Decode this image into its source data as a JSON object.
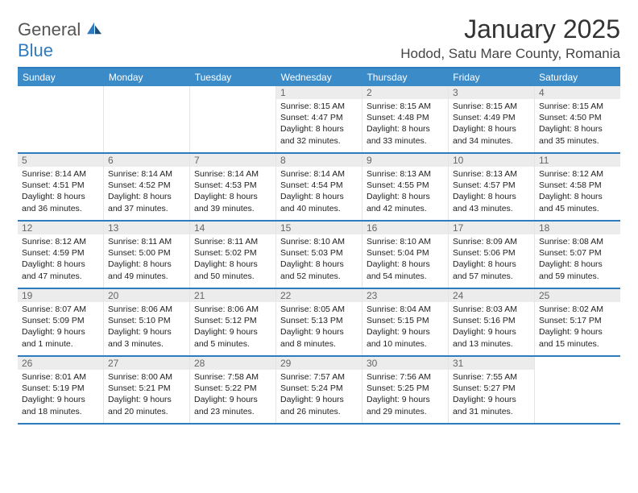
{
  "brand": {
    "name1": "General",
    "name2": "Blue"
  },
  "title": "January 2025",
  "location": "Hodod, Satu Mare County, Romania",
  "colors": {
    "header_bg": "#3b8bc9",
    "border": "#2f7bbf",
    "day_bg": "#ececec",
    "text": "#333333"
  },
  "day_headers": [
    "Sunday",
    "Monday",
    "Tuesday",
    "Wednesday",
    "Thursday",
    "Friday",
    "Saturday"
  ],
  "weeks": [
    [
      {
        "num": "",
        "sunrise": "",
        "sunset": "",
        "daylight": ""
      },
      {
        "num": "",
        "sunrise": "",
        "sunset": "",
        "daylight": ""
      },
      {
        "num": "",
        "sunrise": "",
        "sunset": "",
        "daylight": ""
      },
      {
        "num": "1",
        "sunrise": "Sunrise: 8:15 AM",
        "sunset": "Sunset: 4:47 PM",
        "daylight": "Daylight: 8 hours and 32 minutes."
      },
      {
        "num": "2",
        "sunrise": "Sunrise: 8:15 AM",
        "sunset": "Sunset: 4:48 PM",
        "daylight": "Daylight: 8 hours and 33 minutes."
      },
      {
        "num": "3",
        "sunrise": "Sunrise: 8:15 AM",
        "sunset": "Sunset: 4:49 PM",
        "daylight": "Daylight: 8 hours and 34 minutes."
      },
      {
        "num": "4",
        "sunrise": "Sunrise: 8:15 AM",
        "sunset": "Sunset: 4:50 PM",
        "daylight": "Daylight: 8 hours and 35 minutes."
      }
    ],
    [
      {
        "num": "5",
        "sunrise": "Sunrise: 8:14 AM",
        "sunset": "Sunset: 4:51 PM",
        "daylight": "Daylight: 8 hours and 36 minutes."
      },
      {
        "num": "6",
        "sunrise": "Sunrise: 8:14 AM",
        "sunset": "Sunset: 4:52 PM",
        "daylight": "Daylight: 8 hours and 37 minutes."
      },
      {
        "num": "7",
        "sunrise": "Sunrise: 8:14 AM",
        "sunset": "Sunset: 4:53 PM",
        "daylight": "Daylight: 8 hours and 39 minutes."
      },
      {
        "num": "8",
        "sunrise": "Sunrise: 8:14 AM",
        "sunset": "Sunset: 4:54 PM",
        "daylight": "Daylight: 8 hours and 40 minutes."
      },
      {
        "num": "9",
        "sunrise": "Sunrise: 8:13 AM",
        "sunset": "Sunset: 4:55 PM",
        "daylight": "Daylight: 8 hours and 42 minutes."
      },
      {
        "num": "10",
        "sunrise": "Sunrise: 8:13 AM",
        "sunset": "Sunset: 4:57 PM",
        "daylight": "Daylight: 8 hours and 43 minutes."
      },
      {
        "num": "11",
        "sunrise": "Sunrise: 8:12 AM",
        "sunset": "Sunset: 4:58 PM",
        "daylight": "Daylight: 8 hours and 45 minutes."
      }
    ],
    [
      {
        "num": "12",
        "sunrise": "Sunrise: 8:12 AM",
        "sunset": "Sunset: 4:59 PM",
        "daylight": "Daylight: 8 hours and 47 minutes."
      },
      {
        "num": "13",
        "sunrise": "Sunrise: 8:11 AM",
        "sunset": "Sunset: 5:00 PM",
        "daylight": "Daylight: 8 hours and 49 minutes."
      },
      {
        "num": "14",
        "sunrise": "Sunrise: 8:11 AM",
        "sunset": "Sunset: 5:02 PM",
        "daylight": "Daylight: 8 hours and 50 minutes."
      },
      {
        "num": "15",
        "sunrise": "Sunrise: 8:10 AM",
        "sunset": "Sunset: 5:03 PM",
        "daylight": "Daylight: 8 hours and 52 minutes."
      },
      {
        "num": "16",
        "sunrise": "Sunrise: 8:10 AM",
        "sunset": "Sunset: 5:04 PM",
        "daylight": "Daylight: 8 hours and 54 minutes."
      },
      {
        "num": "17",
        "sunrise": "Sunrise: 8:09 AM",
        "sunset": "Sunset: 5:06 PM",
        "daylight": "Daylight: 8 hours and 57 minutes."
      },
      {
        "num": "18",
        "sunrise": "Sunrise: 8:08 AM",
        "sunset": "Sunset: 5:07 PM",
        "daylight": "Daylight: 8 hours and 59 minutes."
      }
    ],
    [
      {
        "num": "19",
        "sunrise": "Sunrise: 8:07 AM",
        "sunset": "Sunset: 5:09 PM",
        "daylight": "Daylight: 9 hours and 1 minute."
      },
      {
        "num": "20",
        "sunrise": "Sunrise: 8:06 AM",
        "sunset": "Sunset: 5:10 PM",
        "daylight": "Daylight: 9 hours and 3 minutes."
      },
      {
        "num": "21",
        "sunrise": "Sunrise: 8:06 AM",
        "sunset": "Sunset: 5:12 PM",
        "daylight": "Daylight: 9 hours and 5 minutes."
      },
      {
        "num": "22",
        "sunrise": "Sunrise: 8:05 AM",
        "sunset": "Sunset: 5:13 PM",
        "daylight": "Daylight: 9 hours and 8 minutes."
      },
      {
        "num": "23",
        "sunrise": "Sunrise: 8:04 AM",
        "sunset": "Sunset: 5:15 PM",
        "daylight": "Daylight: 9 hours and 10 minutes."
      },
      {
        "num": "24",
        "sunrise": "Sunrise: 8:03 AM",
        "sunset": "Sunset: 5:16 PM",
        "daylight": "Daylight: 9 hours and 13 minutes."
      },
      {
        "num": "25",
        "sunrise": "Sunrise: 8:02 AM",
        "sunset": "Sunset: 5:17 PM",
        "daylight": "Daylight: 9 hours and 15 minutes."
      }
    ],
    [
      {
        "num": "26",
        "sunrise": "Sunrise: 8:01 AM",
        "sunset": "Sunset: 5:19 PM",
        "daylight": "Daylight: 9 hours and 18 minutes."
      },
      {
        "num": "27",
        "sunrise": "Sunrise: 8:00 AM",
        "sunset": "Sunset: 5:21 PM",
        "daylight": "Daylight: 9 hours and 20 minutes."
      },
      {
        "num": "28",
        "sunrise": "Sunrise: 7:58 AM",
        "sunset": "Sunset: 5:22 PM",
        "daylight": "Daylight: 9 hours and 23 minutes."
      },
      {
        "num": "29",
        "sunrise": "Sunrise: 7:57 AM",
        "sunset": "Sunset: 5:24 PM",
        "daylight": "Daylight: 9 hours and 26 minutes."
      },
      {
        "num": "30",
        "sunrise": "Sunrise: 7:56 AM",
        "sunset": "Sunset: 5:25 PM",
        "daylight": "Daylight: 9 hours and 29 minutes."
      },
      {
        "num": "31",
        "sunrise": "Sunrise: 7:55 AM",
        "sunset": "Sunset: 5:27 PM",
        "daylight": "Daylight: 9 hours and 31 minutes."
      },
      {
        "num": "",
        "sunrise": "",
        "sunset": "",
        "daylight": ""
      }
    ]
  ]
}
